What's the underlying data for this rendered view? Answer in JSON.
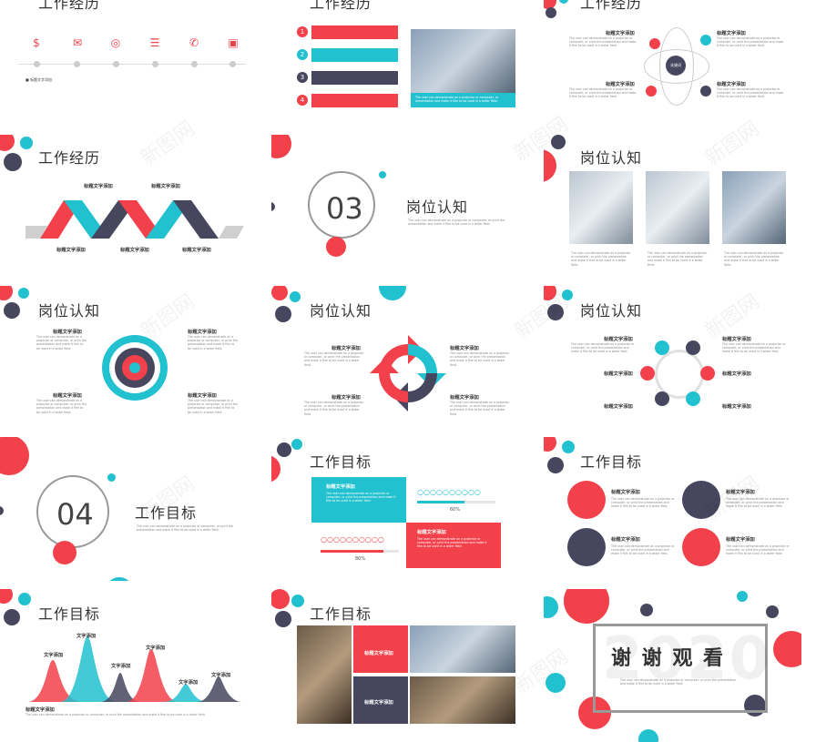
{
  "placeholder_text": "The user can demonstrate on a projector or computer, or print the presentation and make it film to be used in a wider field.",
  "slides": {
    "s1": {
      "title": "工作经历",
      "items": [
        "$",
        "✉",
        "◎",
        "☰",
        "✆",
        "▣"
      ],
      "bullet": "标题文字添加"
    },
    "s2": {
      "title": "工作经历",
      "nums": [
        "1",
        "2",
        "3",
        "4"
      ],
      "caption": "The user can demonstrate on a projector or computer, or presentation and make it film to be used in a wider field."
    },
    "s3": {
      "title": "工作经历",
      "center": "关键词",
      "label": "标题文字添加"
    },
    "s4": {
      "title": "工作经历",
      "label": "标题文字添加"
    },
    "s5": {
      "num": "03",
      "title": "岗位认知"
    },
    "s6": {
      "title": "岗位认知",
      "label": "标题文字添加"
    },
    "s7": {
      "title": "岗位认知",
      "label": "标题文字添加"
    },
    "s8": {
      "title": "岗位认知",
      "label": "标题文字添加"
    },
    "s9": {
      "title": "岗位认知",
      "label": "标题文字添加"
    },
    "s10": {
      "num": "04",
      "title": "工作目标"
    },
    "s11": {
      "title": "工作目标",
      "label": "标题文字添加",
      "pct1": "60%",
      "pct2": "80%"
    },
    "s12": {
      "title": "工作目标",
      "label": "标题文字添加"
    },
    "s13": {
      "title": "工作目标",
      "label": "文字添加",
      "label2": "标题文字添加"
    },
    "s14": {
      "title": "工作目标",
      "label": "标题文字添加"
    },
    "s15": {
      "title": "谢 谢 观 看",
      "year": "2020"
    }
  },
  "watermark": "新图网",
  "colors": {
    "red": "#f2414b",
    "cyan": "#22c1d0",
    "navy": "#46465e"
  }
}
